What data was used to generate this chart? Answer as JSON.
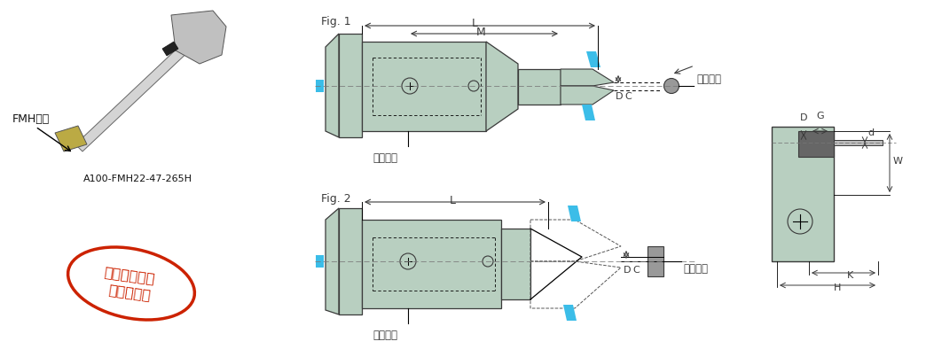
{
  "bg_color": "#ffffff",
  "tool_color": "#b8cfc0",
  "tool_dark": "#3a3a3a",
  "cyan_color": "#3bbde8",
  "red_color": "#cc2200",
  "gray_dark": "#555555",
  "label_color": "#111111",
  "fig1_label": "Fig. 1",
  "fig2_label": "Fig. 2",
  "dim_L": "L",
  "dim_M": "M",
  "dim_D": "D",
  "dim_C": "C",
  "dim_G": "G",
  "dim_W": "W",
  "dim_d": "d",
  "dim_K": "K",
  "dim_H": "H",
  "label_jiachi_luoshuan": "夹持螺栓",
  "label_yingzhi_hejin": "硬质合金",
  "label_fmh_guige": "FMH规格",
  "label_model": "A100-FMH22-47-265H",
  "label_stamp_line1": "增加长度不同",
  "label_stamp_line2": "的刀柄系列"
}
